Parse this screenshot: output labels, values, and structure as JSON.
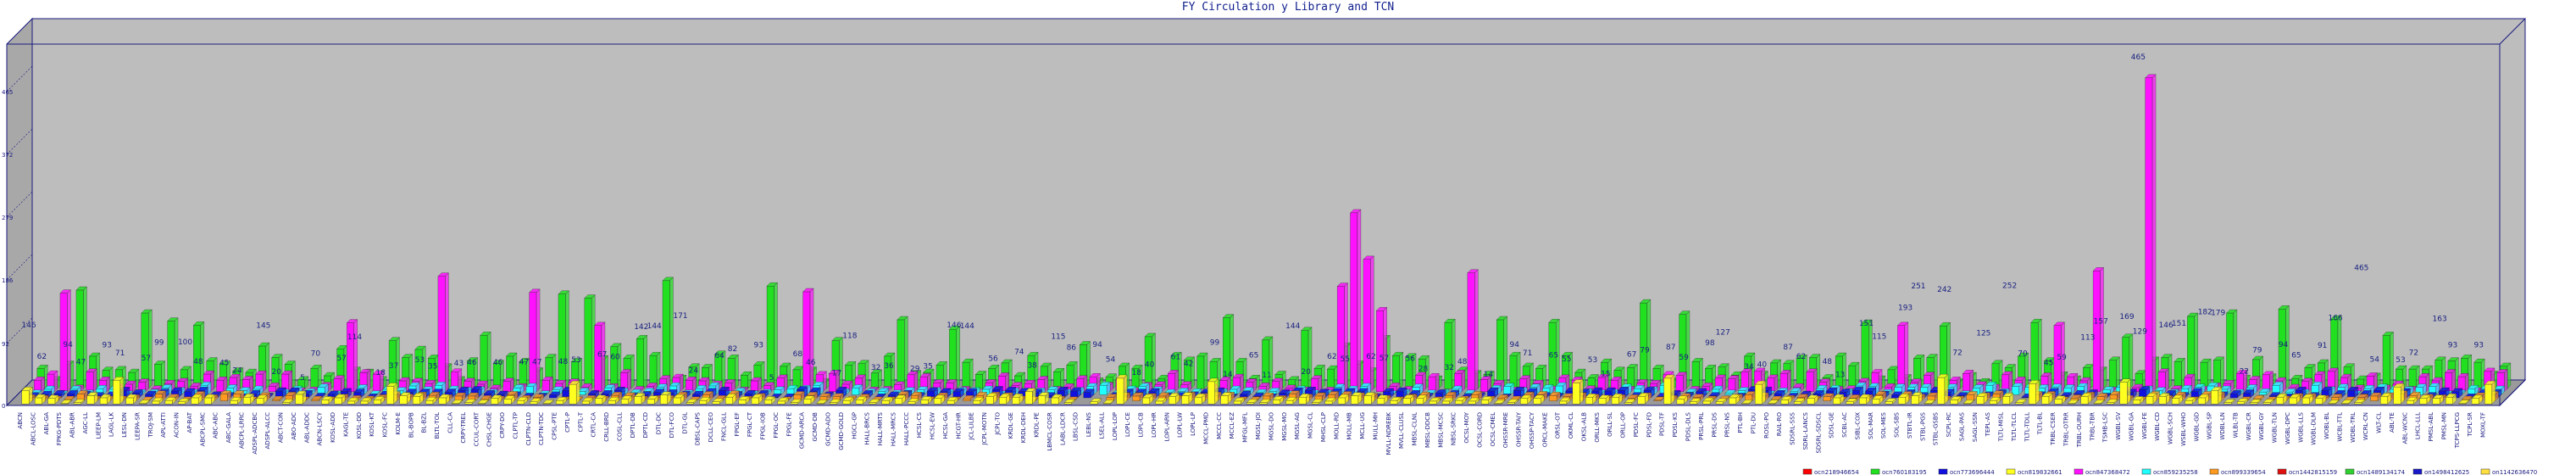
{
  "chart_data": {
    "type": "bar",
    "title": "FY Circulation y Library and TCN",
    "xlabel": "",
    "ylabel": "",
    "ylim": [
      0,
      465
    ],
    "y_ticks": [
      0,
      92,
      186,
      279,
      372,
      465
    ],
    "grid": false,
    "legend_position": "bottom-right",
    "categories": [
      "ABCN",
      "ABCL-LOSC",
      "ABL-GA",
      "FPKG-PDTS",
      "ABL-ABR",
      "AGC-LL",
      "LIEEP-LM",
      "LAGL-LK",
      "LESL-DN",
      "LEEPA-SR",
      "TROJ-SM",
      "APL-ATTI",
      "ACON-IN",
      "AP-BAT",
      "ABCPL-SMC",
      "ABC-ABC",
      "ABC-GALA",
      "ABCPL-LRRC",
      "ADSPL-ADCBC",
      "ADSPL-ALCC",
      "ABCT-CON",
      "ABO-ADC",
      "ABL-ADDC",
      "ABCN-LSCY",
      "KOSL-ADD",
      "KAGL-TE",
      "KOSL-DD",
      "KOSL-KT",
      "KOSL-FC",
      "KOLM-E",
      "BL-BOPB",
      "BL-BZL",
      "BLTL-TOL",
      "CLL-CA",
      "CRPY-TREL",
      "CCUL-CORT",
      "CHSL-CHGE",
      "CRPY-DO",
      "CLPTL-TP",
      "CLPTN-CLD",
      "CLPTN-TDC",
      "CPSL-PTE",
      "CPTL-P",
      "CPTL-T",
      "CRTL-CA",
      "CRLL-BRD",
      "COSL-CLL",
      "DPTL-DB",
      "DPTL-CD",
      "DTL-DC",
      "DTL-FCO",
      "DTL-GL",
      "DBSL-CAPS",
      "DCLL-CEO",
      "FNCL-GLL",
      "FPGL-EF",
      "FPGL-CT",
      "FPGL-IOB",
      "FPGL-OC",
      "FPGL-FE",
      "GCMD-ARCA",
      "GCMD-DB",
      "GCMD-ADO",
      "GCMD-GOLD",
      "HGCL-GP",
      "HALL-BRCS",
      "HALL-MRTS",
      "HALL-MRCS",
      "HALL-PCCC",
      "HCSL-CS",
      "HCSL-EW",
      "HCSL-GA",
      "HCGT-HR",
      "JCL-LILBE",
      "JCPL-MOTN",
      "JCPL-TO",
      "KRDL-GE",
      "KRDL-DEH",
      "KRDL-PE",
      "LBMCL-COSR",
      "LABL-LDCR",
      "LBSL-CSD",
      "LEBL-NS",
      "LSEL-ALL",
      "LOPL-LOP",
      "LOPL-CE",
      "LOPL-CB",
      "LOPL-HR",
      "LOPL-ARN",
      "LOPL-LW",
      "LOPL-LP",
      "MCCL-PMD",
      "MCCL-CC",
      "MCCL-EZ",
      "MFGL-MFL",
      "MGSL-JOI",
      "MGSL-DO",
      "MGSL-MO",
      "MGSL-AG",
      "MGSL-CL",
      "MHSL-CLP",
      "MOLL-RD",
      "MOLL-MB",
      "MCLL-UG",
      "MULL-MH",
      "MVLL-NDREBK",
      "MVLL-CLUSL",
      "MBSL-CLNL",
      "MBSL-DDCB",
      "MBSL-MCSC",
      "NBSL-SRKC",
      "OCSL-MOY",
      "OCSL-CORD",
      "OCSL-CMEL",
      "OHSSR-MRE",
      "OHSSR-TAIY",
      "OHSSP-TACY",
      "ORCL-MAKE",
      "ORSL-OT",
      "OKML-CL",
      "OKSL-ALB",
      "ORLL-MKS",
      "ORLL-SL",
      "ORLL-OP",
      "PDSL-FC",
      "PDSL-FD",
      "PDSL-TF",
      "PDSL-KS",
      "PDSL-DLS",
      "PRSL-PRL",
      "PRSL-DS",
      "PRSL-NS",
      "PTL-BH",
      "PTL-DU",
      "ROSL-PO",
      "RAIL-RO",
      "SDSRL-SSS",
      "SDRL-LANCS",
      "SDSRL-SDSCL",
      "SDSL-GE",
      "SCBL-AC",
      "SIBL-COX",
      "SOL-MAR",
      "SOL-MES",
      "SOL-SBS",
      "STBTL-IR",
      "STBL-PGS",
      "STBL-GSBS",
      "SCPL-RC",
      "SAGL-PAS",
      "SAGL-SSN",
      "TEPL-AS",
      "TLTL-MISL",
      "TLTL-TLCL",
      "TLTL-TDLL",
      "TLTL-BL",
      "TRBL-CSER",
      "TRBL-OTRR",
      "TRBL-OURH",
      "TRBL-TBR",
      "TSMB-LSC",
      "WGBL-SV",
      "WGBL-GA",
      "WGBL-FE",
      "WGBL-CD",
      "WGBL-SCH",
      "WSBL-WHO",
      "WGBL-GD",
      "WGBL-SP",
      "WDBL-LN",
      "WLBL-TB",
      "WGBL-CR",
      "WGBL-GY",
      "WGBL-TLN",
      "WGBL-DPC",
      "WGBL-LLS",
      "WGBL-DLM",
      "WOBL-BL",
      "WCBL-TTL",
      "WDBL-TRL",
      "WCRL-CN",
      "WLT-CL",
      "ABL-TE",
      "ABL-WCNC",
      "LHCL-LLL",
      "PMSL-ABL",
      "PMSL-MN",
      "TCPS-LLPCG",
      "TCPL-SR",
      "MOXL-TF"
    ],
    "series": [
      {
        "name": "ocn218946654",
        "color": "#ff0000"
      },
      {
        "name": "ocn760183195",
        "color": "#20e020"
      },
      {
        "name": "ocn773696444",
        "color": "#1010e0"
      },
      {
        "name": "ocn819832661",
        "color": "#ffff20"
      },
      {
        "name": "ocn847368472",
        "color": "#ff10ff"
      },
      {
        "name": "ocn859235258",
        "color": "#20ffff"
      },
      {
        "name": "ocn899339654",
        "color": "#ff9a20"
      },
      {
        "name": "ocn1442815159",
        "color": "#e01010"
      },
      {
        "name": "ocn1489134174",
        "color": "#30d030"
      },
      {
        "name": "on1498412625",
        "color": "#1818c8"
      },
      {
        "name": "on1142636470",
        "color": "#ffe040"
      }
    ],
    "value_labels": [
      "146",
      "62",
      "94",
      "47",
      "93",
      "71",
      "57",
      "99",
      "100",
      "48",
      "45",
      "24",
      "145",
      "20",
      "5",
      "70",
      "57",
      "114",
      "18",
      "37",
      "53",
      "35",
      "43",
      "46",
      "46",
      "47",
      "47",
      "48",
      "53",
      "67",
      "60",
      "142",
      "144",
      "171",
      "24",
      "64",
      "82",
      "93",
      "5",
      "68",
      "46",
      "17",
      "118",
      "32",
      "36",
      "29",
      "35",
      "146",
      "144",
      "56",
      "74",
      "38",
      "115",
      "86",
      "94",
      "54",
      "18",
      "40",
      "61",
      "42",
      "99",
      "14",
      "65",
      "11",
      "144",
      "20",
      "62",
      "55",
      "62",
      "57",
      "56",
      "28",
      "32",
      "48",
      "14",
      "94",
      "71",
      "65",
      "55",
      "53",
      "15",
      "67",
      "79",
      "87",
      "59",
      "98",
      "127",
      "34",
      "40",
      "87",
      "62",
      "48",
      "13",
      "151",
      "115",
      "193",
      "251",
      "242",
      "72",
      "125",
      "252",
      "70",
      "45",
      "59",
      "113",
      "157",
      "169",
      "129",
      "146",
      "151",
      "182",
      "179",
      "22",
      "79",
      "94",
      "65",
      "91",
      "166",
      "465",
      "54",
      "53",
      "72",
      "163",
      "93",
      "93"
    ],
    "peak_label": "465"
  }
}
